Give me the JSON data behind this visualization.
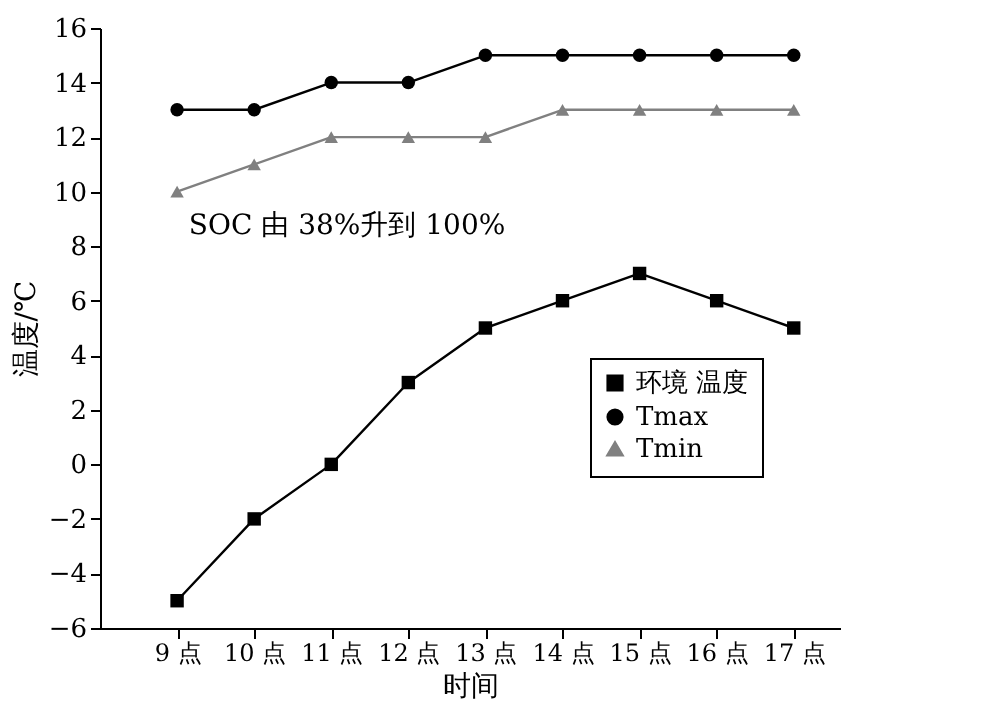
{
  "chart_data": {
    "type": "line",
    "xlabel": "时间",
    "ylabel": "温度/℃",
    "categories": [
      "9 点",
      "10 点",
      "11 点",
      "12 点",
      "13 点",
      "14 点",
      "15 点",
      "16 点",
      "17 点"
    ],
    "series": [
      {
        "name": "环境 温度",
        "color": "#000000",
        "marker": "square",
        "values": [
          -5,
          -2,
          0,
          3,
          5,
          6,
          7,
          6,
          5
        ]
      },
      {
        "name": "Tmax",
        "color": "#000000",
        "marker": "circle",
        "values": [
          13,
          13,
          14,
          14,
          15,
          15,
          15,
          15,
          15
        ]
      },
      {
        "name": "Tmin",
        "color": "#808080",
        "marker": "triangle",
        "values": [
          10,
          11,
          12,
          12,
          12,
          13,
          13,
          13,
          13
        ]
      }
    ],
    "ylim": [
      -6,
      16
    ],
    "yticks": [
      -6,
      -4,
      -2,
      0,
      2,
      4,
      6,
      8,
      10,
      12,
      14,
      16
    ],
    "grid": false,
    "legend": "right",
    "line_style": "solid",
    "annotations": [
      "SOC 由 38%升到 100%"
    ]
  }
}
